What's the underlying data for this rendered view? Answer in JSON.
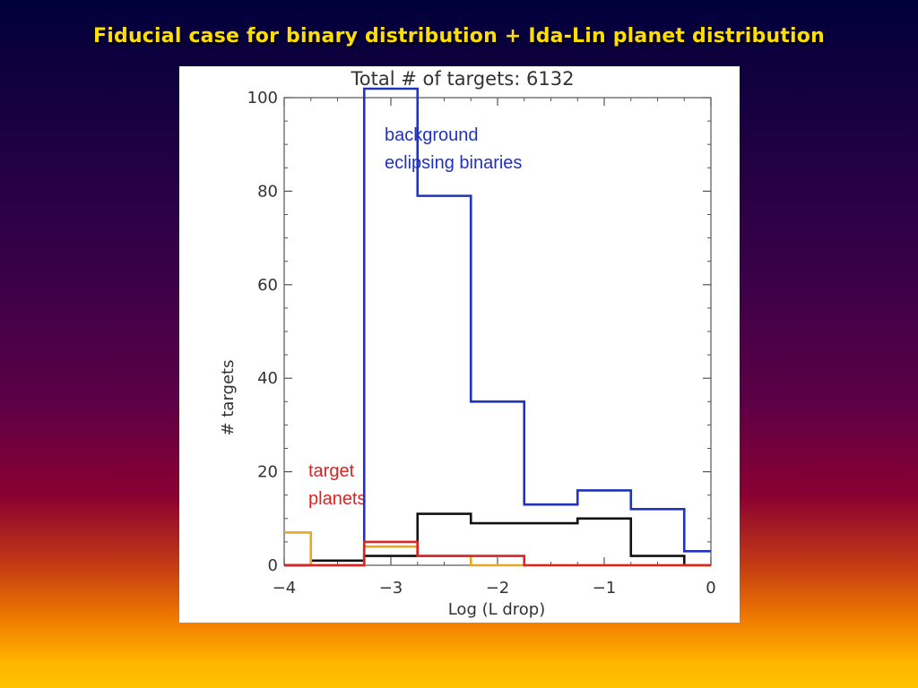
{
  "slide": {
    "title": "Fiducial case for binary distribution + Ida-Lin planet distribution"
  },
  "colors": {
    "background_eb": "#2233bb",
    "planets": "#dd2222",
    "orange": "#e8a820",
    "black": "#111111"
  },
  "chart_data": {
    "type": "line",
    "title": "Total # of targets:  6132",
    "xlabel": "Log (L drop)",
    "ylabel": "# targets",
    "xlim": [
      -4,
      0
    ],
    "ylim": [
      0,
      100
    ],
    "xticks": [
      -4,
      -3,
      -2,
      -1,
      0
    ],
    "xtick_labels": [
      "−4",
      "−3",
      "−2",
      "−1",
      "0"
    ],
    "yticks": [
      0,
      20,
      40,
      60,
      80,
      100
    ],
    "grid": false,
    "bin_edges": [
      -4.0,
      -3.75,
      -3.25,
      -2.75,
      -2.25,
      -1.75,
      -1.25,
      -0.75,
      -0.25,
      0.0
    ],
    "series": [
      {
        "name": "background eclipsing binaries",
        "color": "#2233bb",
        "values": [
          0,
          0,
          100,
          79,
          35,
          13,
          16,
          12,
          3
        ],
        "clip_top": true
      },
      {
        "color": "#111111",
        "values": [
          0,
          1,
          2,
          11,
          9,
          9,
          10,
          2,
          0
        ]
      },
      {
        "color": "#e8a820",
        "values": [
          7,
          0,
          4,
          2,
          0,
          0,
          0,
          0,
          0
        ]
      },
      {
        "name": "target planets",
        "color": "#dd2222",
        "values": [
          0,
          0,
          5,
          2,
          2,
          0,
          0,
          0,
          0
        ]
      }
    ],
    "annotations": [
      {
        "lines": [
          "background",
          "eclipsing binaries"
        ],
        "color": "#2233bb"
      },
      {
        "lines": [
          "target",
          "planets"
        ],
        "color": "#dd2222"
      }
    ]
  }
}
